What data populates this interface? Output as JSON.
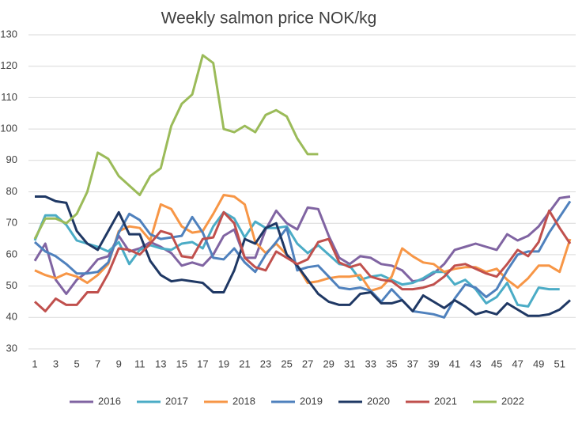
{
  "chart_data": {
    "type": "line",
    "title": "Weekly salmon price NOK/kg",
    "x": [
      1,
      2,
      3,
      4,
      5,
      6,
      7,
      8,
      9,
      10,
      11,
      12,
      13,
      14,
      15,
      16,
      17,
      18,
      19,
      20,
      21,
      22,
      23,
      24,
      25,
      26,
      27,
      28,
      29,
      30,
      31,
      32,
      33,
      34,
      35,
      36,
      37,
      38,
      39,
      40,
      41,
      42,
      43,
      44,
      45,
      46,
      47,
      48,
      49,
      50,
      51,
      52
    ],
    "xlim": [
      1,
      52
    ],
    "xticks": [
      1,
      3,
      5,
      7,
      9,
      11,
      13,
      15,
      17,
      19,
      21,
      23,
      25,
      27,
      29,
      31,
      33,
      35,
      37,
      39,
      41,
      43,
      45,
      47,
      49,
      51
    ],
    "ylim": [
      30,
      130
    ],
    "yticks": [
      30,
      40,
      50,
      60,
      70,
      80,
      90,
      100,
      110,
      120,
      130
    ],
    "grid": true,
    "legend": "bottom",
    "series": [
      {
        "name": "2016",
        "color": "#8064a2",
        "values": [
          58,
          63.5,
          52,
          47.5,
          52,
          54.5,
          58.5,
          59.5,
          66,
          61,
          62,
          64,
          62.5,
          60.5,
          56.5,
          57.5,
          56.5,
          60,
          66,
          68,
          59,
          59,
          68,
          74,
          70,
          68,
          75,
          74.5,
          66,
          59,
          57,
          59.5,
          59,
          57,
          56.5,
          55,
          51.5,
          52,
          54,
          57,
          61.5,
          62.5,
          63.5,
          62.5,
          61.5,
          66.5,
          64.5,
          66,
          69,
          73.5,
          78,
          78.5
        ]
      },
      {
        "name": "2017",
        "color": "#4bacc6",
        "values": [
          64.5,
          72.5,
          72.5,
          69.5,
          64.5,
          63.5,
          62.5,
          61,
          64,
          57,
          61.5,
          63,
          62,
          61.5,
          63.5,
          64,
          62,
          69,
          73.5,
          71.5,
          65.5,
          70.5,
          68.5,
          68.5,
          69,
          63.5,
          60.5,
          63,
          60,
          57,
          56.5,
          52,
          53,
          53.5,
          52,
          50.5,
          51,
          52.5,
          54.5,
          54.5,
          50.5,
          52,
          49,
          44.5,
          46.5,
          51,
          44,
          43.5,
          49.5,
          49,
          49,
          null
        ]
      },
      {
        "name": "2018",
        "color": "#f79646",
        "values": [
          55,
          53.5,
          52.5,
          54,
          53,
          51,
          53.5,
          57,
          67.5,
          69,
          68.5,
          64.5,
          76,
          74.5,
          69,
          67,
          67.5,
          73,
          79,
          78.5,
          76,
          64,
          60.5,
          63.5,
          60,
          56.5,
          51,
          51.5,
          52.5,
          53,
          53,
          53.5,
          48.5,
          49.5,
          53,
          62,
          59.5,
          57.5,
          57,
          54.5,
          55.5,
          56,
          56,
          54.5,
          55.5,
          52,
          49.5,
          52.5,
          56.5,
          56.5,
          54.5,
          65
        ]
      },
      {
        "name": "2019",
        "color": "#4f81bd",
        "values": [
          64,
          61,
          59.5,
          57,
          54,
          54,
          54.5,
          57.5,
          67,
          73,
          71,
          66.5,
          65,
          65.5,
          66,
          72,
          67,
          59,
          58.5,
          62,
          57.5,
          54.5,
          60,
          64,
          68.5,
          55,
          56,
          56.5,
          53,
          49.5,
          49,
          49.5,
          48.5,
          45,
          49,
          45.5,
          42,
          41.5,
          41,
          40,
          46,
          50.5,
          49.5,
          46.5,
          49,
          55,
          60,
          61,
          61,
          67,
          72,
          77
        ]
      },
      {
        "name": "2020",
        "color": "#1f3864",
        "values": [
          78.5,
          78.5,
          77,
          76.5,
          67.5,
          63.5,
          61.5,
          67.5,
          73.5,
          66.5,
          66.5,
          58,
          53.5,
          51.5,
          52,
          51.5,
          51,
          48,
          48,
          55,
          65,
          63.5,
          68.5,
          70,
          60,
          56.5,
          52,
          47.5,
          45,
          44,
          44,
          47.5,
          48,
          44.5,
          44.5,
          45.5,
          42,
          47,
          45,
          43,
          45.5,
          43.5,
          41,
          42,
          41,
          44.5,
          42.5,
          40.5,
          40.5,
          41,
          42.5,
          45.5
        ]
      },
      {
        "name": "2021",
        "color": "#c0504d",
        "values": [
          45,
          42,
          46,
          44,
          44,
          48,
          48,
          54,
          62,
          61.5,
          60,
          63.5,
          67.5,
          66.5,
          59.5,
          59,
          65,
          65.5,
          73.5,
          70,
          59,
          56,
          55,
          61,
          59,
          57,
          58.5,
          64,
          65,
          57.5,
          56,
          57,
          53,
          52,
          51.5,
          49,
          49,
          49.5,
          50.5,
          53,
          56.5,
          57,
          55.5,
          54,
          53,
          57,
          61.5,
          59.5,
          64,
          74,
          68.5,
          63.5
        ]
      },
      {
        "name": "2022",
        "color": "#9bbb59",
        "values": [
          65,
          71.5,
          71.5,
          70,
          73,
          80,
          92.5,
          90.5,
          85,
          82,
          79,
          85,
          87.5,
          101,
          108,
          111,
          123.5,
          121,
          100,
          99,
          101,
          99,
          104.5,
          106,
          104,
          97,
          92,
          92,
          null,
          null,
          null,
          null,
          null,
          null,
          null,
          null,
          null,
          null,
          null,
          null,
          null,
          null,
          null,
          null,
          null,
          null,
          null,
          null,
          null,
          null,
          null,
          null
        ]
      }
    ]
  }
}
